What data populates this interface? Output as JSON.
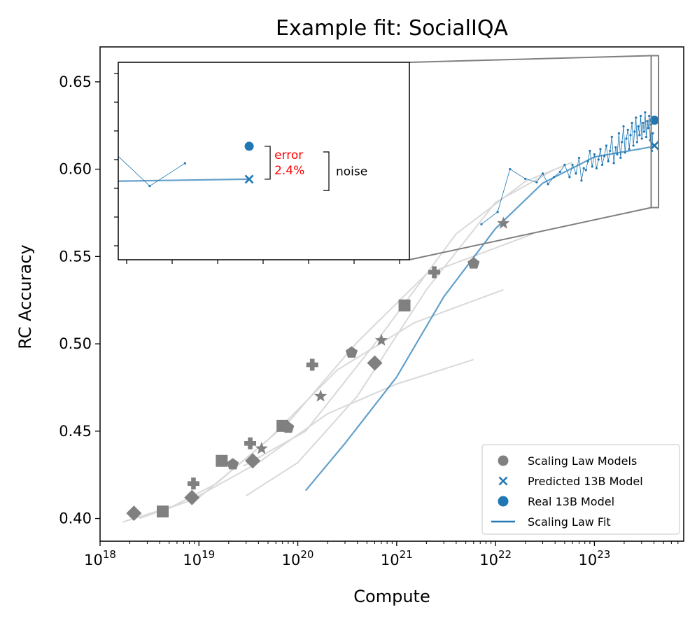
{
  "chart_data": {
    "type": "scatter",
    "title": "Example fit: SocialIQA",
    "xlabel": "Compute",
    "ylabel": "RC Accuracy",
    "xscale": "log",
    "xlim": [
      1e+18,
      8e+23
    ],
    "ylim": [
      0.387,
      0.67
    ],
    "x_ticks": [
      {
        "value": 1e+18,
        "base": "10",
        "exp": "18"
      },
      {
        "value": 1e+19,
        "base": "10",
        "exp": "19"
      },
      {
        "value": 1e+20,
        "base": "10",
        "exp": "20"
      },
      {
        "value": 1e+21,
        "base": "10",
        "exp": "21"
      },
      {
        "value": 1e+22,
        "base": "10",
        "exp": "22"
      },
      {
        "value": 1e+23,
        "base": "10",
        "exp": "23"
      }
    ],
    "y_ticks": [
      {
        "value": 0.4,
        "label": "0.40"
      },
      {
        "value": 0.45,
        "label": "0.45"
      },
      {
        "value": 0.5,
        "label": "0.50"
      },
      {
        "value": 0.55,
        "label": "0.55"
      },
      {
        "value": 0.6,
        "label": "0.60"
      },
      {
        "value": 0.65,
        "label": "0.65"
      }
    ],
    "colors": {
      "scaling_models": "#808080",
      "fit": "#1f77b4",
      "trend": "#d9d9d9",
      "annotation": "#ff0000"
    },
    "scaling_law_model_points": [
      {
        "marker": "diamond",
        "points": [
          [
            2.2e+18,
            0.403
          ],
          [
            8.5e+18,
            0.412
          ],
          [
            3.5e+19,
            0.433
          ],
          [
            6e+20,
            0.489
          ]
        ]
      },
      {
        "marker": "square",
        "points": [
          [
            4.3e+18,
            0.404
          ],
          [
            1.7e+19,
            0.433
          ],
          [
            7e+19,
            0.453
          ],
          [
            1.2e+21,
            0.522
          ]
        ]
      },
      {
        "marker": "plus",
        "points": [
          [
            8.8e+18,
            0.42
          ],
          [
            3.3e+19,
            0.443
          ],
          [
            1.4e+20,
            0.488
          ],
          [
            2.4e+21,
            0.541
          ]
        ]
      },
      {
        "marker": "pentagon",
        "points": [
          [
            2.2e+19,
            0.431
          ],
          [
            8e+19,
            0.452
          ],
          [
            3.5e+20,
            0.495
          ],
          [
            6e+21,
            0.546
          ]
        ]
      },
      {
        "marker": "star",
        "points": [
          [
            4.3e+19,
            0.44
          ],
          [
            1.7e+20,
            0.47
          ],
          [
            7e+20,
            0.502
          ],
          [
            1.2e+22,
            0.569
          ]
        ]
      }
    ],
    "trend_curves": [
      [
        [
          1.7e+18,
          0.398
        ],
        [
          8e+18,
          0.41
        ],
        [
          4e+19,
          0.432
        ],
        [
          2e+20,
          0.46
        ],
        [
          1e+21,
          0.477
        ],
        [
          6e+21,
          0.491
        ]
      ],
      [
        [
          2.5e+18,
          0.4
        ],
        [
          1e+19,
          0.412
        ],
        [
          5e+19,
          0.445
        ],
        [
          2.5e+20,
          0.485
        ],
        [
          1.5e+21,
          0.512
        ],
        [
          1.2e+22,
          0.531
        ]
      ],
      [
        [
          4e+18,
          0.403
        ],
        [
          1.5e+19,
          0.42
        ],
        [
          8e+19,
          0.455
        ],
        [
          4e+20,
          0.501
        ],
        [
          2e+21,
          0.54
        ],
        [
          2.4e+22,
          0.563
        ]
      ],
      [
        [
          3e+19,
          0.413
        ],
        [
          1e+20,
          0.432
        ],
        [
          4e+20,
          0.47
        ],
        [
          2e+21,
          0.531
        ],
        [
          1e+22,
          0.581
        ],
        [
          4e+22,
          0.6
        ]
      ],
      [
        [
          2.8e+19,
          0.43
        ],
        [
          1.2e+20,
          0.45
        ],
        [
          6e+20,
          0.5
        ],
        [
          4e+21,
          0.563
        ],
        [
          2e+22,
          0.593
        ],
        [
          6e+22,
          0.604
        ]
      ]
    ],
    "fit_curve": [
      [
        1.2e+20,
        0.416
      ],
      [
        3e+20,
        0.443
      ],
      [
        1e+21,
        0.481
      ],
      [
        3e+21,
        0.527
      ],
      [
        1e+22,
        0.566
      ],
      [
        3e+22,
        0.592
      ],
      [
        1e+23,
        0.607
      ],
      [
        4e+23,
        0.613
      ]
    ],
    "checkpoint_series": [
      [
        7.2e+21,
        0.5685
      ],
      [
        1.05e+22,
        0.5755
      ],
      [
        1.4e+22,
        0.6
      ],
      [
        2e+22,
        0.5945
      ],
      [
        2.6e+22,
        0.5925
      ],
      [
        3e+22,
        0.5975
      ],
      [
        3.4e+22,
        0.5915
      ],
      [
        3.9e+22,
        0.5955
      ],
      [
        4.5e+22,
        0.5985
      ],
      [
        5e+22,
        0.6025
      ],
      [
        5.6e+22,
        0.5955
      ],
      [
        6e+22,
        0.6025
      ],
      [
        6.5e+22,
        0.5975
      ],
      [
        7e+22,
        0.6065
      ],
      [
        7.4e+22,
        0.5935
      ],
      [
        7.8e+22,
        0.6005
      ],
      [
        8.2e+22,
        0.5995
      ],
      [
        8.6e+22,
        0.6045
      ],
      [
        9e+22,
        0.6105
      ],
      [
        9.5e+22,
        0.6015
      ],
      [
        1e+23,
        0.6085
      ],
      [
        1.05e+23,
        0.6005
      ],
      [
        1.1e+23,
        0.6055
      ],
      [
        1.15e+23,
        0.6115
      ],
      [
        1.2e+23,
        0.6025
      ],
      [
        1.26e+23,
        0.6075
      ],
      [
        1.32e+23,
        0.6135
      ],
      [
        1.38e+23,
        0.6045
      ],
      [
        1.44e+23,
        0.6105
      ],
      [
        1.5e+23,
        0.6185
      ],
      [
        1.57e+23,
        0.6035
      ],
      [
        1.64e+23,
        0.6125
      ],
      [
        1.7e+23,
        0.6085
      ],
      [
        1.77e+23,
        0.6205
      ],
      [
        1.84e+23,
        0.6065
      ],
      [
        1.9e+23,
        0.6155
      ],
      [
        1.97e+23,
        0.6245
      ],
      [
        2.04e+23,
        0.6095
      ],
      [
        2.1e+23,
        0.6175
      ],
      [
        2.18e+23,
        0.6225
      ],
      [
        2.25e+23,
        0.6115
      ],
      [
        2.32e+23,
        0.6195
      ],
      [
        2.4e+23,
        0.6265
      ],
      [
        2.48e+23,
        0.6135
      ],
      [
        2.55e+23,
        0.6215
      ],
      [
        2.63e+23,
        0.6295
      ],
      [
        2.7e+23,
        0.6155
      ],
      [
        2.78e+23,
        0.6245
      ],
      [
        2.86e+23,
        0.6195
      ],
      [
        2.94e+23,
        0.6305
      ],
      [
        3.02e+23,
        0.6175
      ],
      [
        3.1e+23,
        0.6265
      ],
      [
        3.18e+23,
        0.6215
      ],
      [
        3.26e+23,
        0.6325
      ],
      [
        3.34e+23,
        0.6185
      ],
      [
        3.42e+23,
        0.6275
      ],
      [
        3.5e+23,
        0.6235
      ],
      [
        3.58e+23,
        0.6305
      ],
      [
        3.66e+23,
        0.6165
      ],
      [
        3.74e+23,
        0.6255
      ],
      [
        3.82e+23,
        0.6105
      ],
      [
        3.9e+23,
        0.6205
      ]
    ],
    "predicted_13b": {
      "x": 4.05e+23,
      "y": 0.6135
    },
    "real_13b": {
      "x": 4.05e+23,
      "y": 0.628
    },
    "inset": {
      "xlim": [
        3.75e+23,
        4.45e+23
      ],
      "ylim": [
        0.578,
        0.665
      ],
      "error_label": [
        "error",
        "2.4%"
      ],
      "noise_label": "noise"
    },
    "legend": {
      "position": "lower right",
      "entries": [
        {
          "label": "Scaling Law Models",
          "marker": "circle",
          "color": "#808080"
        },
        {
          "label": "Predicted 13B Model",
          "marker": "x",
          "color": "#1f77b4"
        },
        {
          "label": "Real 13B Model",
          "marker": "circle",
          "color": "#1f77b4"
        },
        {
          "label": "Scaling Law Fit",
          "marker": "line",
          "color": "#1f77b4"
        }
      ]
    }
  }
}
